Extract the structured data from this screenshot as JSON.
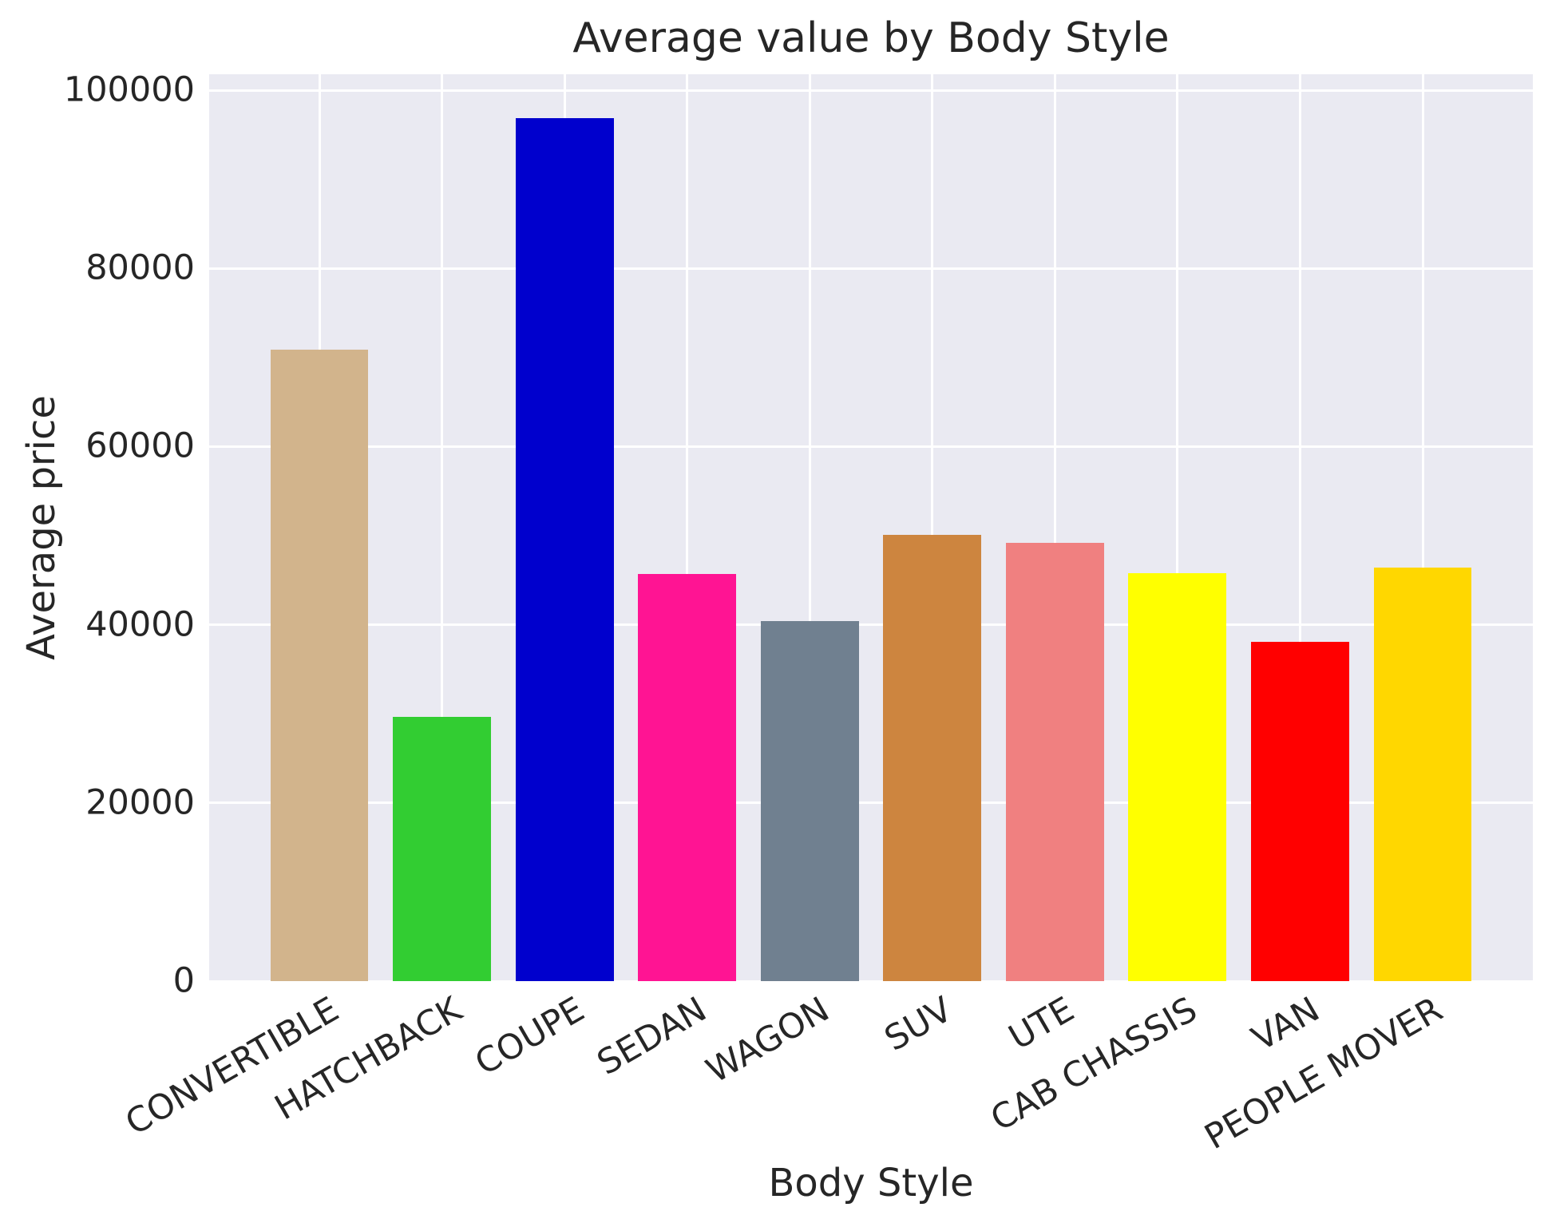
{
  "chart_data": {
    "type": "bar",
    "title": "Average value by Body Style",
    "xlabel": "Body Style",
    "ylabel": "Average price",
    "categories": [
      "CONVERTIBLE",
      "HATCHBACK",
      "COUPE",
      "SEDAN",
      "WAGON",
      "SUV",
      "UTE",
      "CAB CHASSIS",
      "VAN",
      "PEOPLE MOVER"
    ],
    "values": [
      70900,
      29700,
      96900,
      45700,
      40400,
      50100,
      49200,
      45800,
      38100,
      46400
    ],
    "bar_colors": [
      "#D2B48C",
      "#32CD32",
      "#0000CD",
      "#FF1493",
      "#708090",
      "#CD853F",
      "#F08080",
      "#FFFF00",
      "#FF0000",
      "#FFD700"
    ],
    "yticks": [
      0,
      20000,
      40000,
      60000,
      80000,
      100000
    ],
    "ytick_labels": [
      "0",
      "20000",
      "40000",
      "60000",
      "80000",
      "100000"
    ],
    "ylim": [
      0,
      101800
    ],
    "xtick_rotation_deg": 30,
    "grid": true,
    "legend_position": "none",
    "colors": {
      "plot_background": "#EAEAF2",
      "gridline": "#FFFFFF",
      "text": "#262626"
    }
  }
}
